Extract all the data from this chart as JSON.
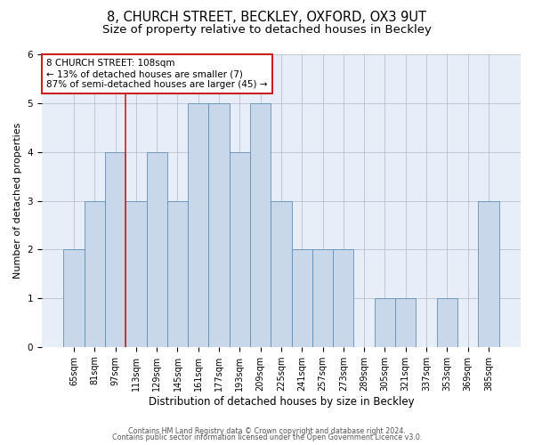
{
  "title1": "8, CHURCH STREET, BECKLEY, OXFORD, OX3 9UT",
  "title2": "Size of property relative to detached houses in Beckley",
  "xlabel": "Distribution of detached houses by size in Beckley",
  "ylabel": "Number of detached properties",
  "categories": [
    "65sqm",
    "81sqm",
    "97sqm",
    "113sqm",
    "129sqm",
    "145sqm",
    "161sqm",
    "177sqm",
    "193sqm",
    "209sqm",
    "225sqm",
    "241sqm",
    "257sqm",
    "273sqm",
    "289sqm",
    "305sqm",
    "321sqm",
    "337sqm",
    "353sqm",
    "369sqm",
    "385sqm"
  ],
  "values": [
    2,
    3,
    4,
    3,
    4,
    3,
    5,
    5,
    4,
    5,
    3,
    2,
    2,
    2,
    0,
    1,
    1,
    0,
    1,
    0,
    3
  ],
  "bar_color": "#c8d8ea",
  "bar_edge_color": "#6090b8",
  "red_line_color": "#cc2020",
  "red_line_x": 2.5,
  "annotation_text": "8 CHURCH STREET: 108sqm\n← 13% of detached houses are smaller (7)\n87% of semi-detached houses are larger (45) →",
  "footer1": "Contains HM Land Registry data © Crown copyright and database right 2024.",
  "footer2": "Contains public sector information licensed under the Open Government Licence v3.0.",
  "ylim": [
    0,
    6
  ],
  "yticks": [
    0,
    1,
    2,
    3,
    4,
    5,
    6
  ],
  "plot_bg_color": "#e8eef8",
  "title1_fontsize": 10.5,
  "title2_fontsize": 9.5,
  "tick_fontsize": 7,
  "ylabel_fontsize": 8,
  "xlabel_fontsize": 8.5,
  "annotation_fontsize": 7.5,
  "footer_fontsize": 5.8
}
